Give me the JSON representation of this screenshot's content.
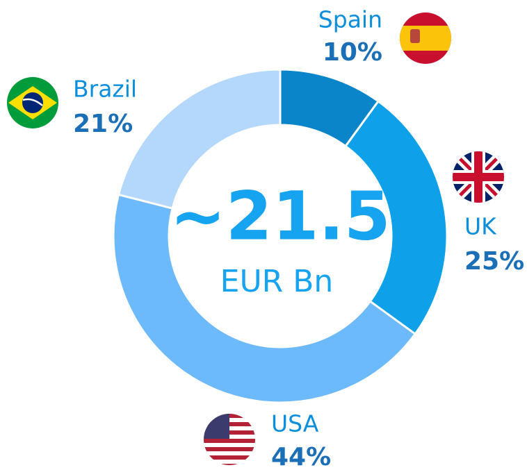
{
  "chart_data": {
    "type": "donut",
    "categories": [
      "Spain",
      "UK",
      "USA",
      "Brazil"
    ],
    "values": [
      10,
      25,
      44,
      21
    ],
    "value_labels": [
      "10%",
      "25%",
      "44%",
      "21%"
    ],
    "colors": [
      "#0a85c9",
      "#0ea0e8",
      "#6cb9fb",
      "#b4d7fc"
    ],
    "center_value": "~21.5",
    "center_unit": "EUR Bn"
  }
}
